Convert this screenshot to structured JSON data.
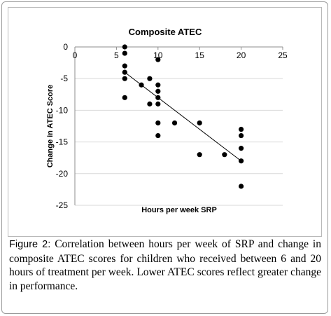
{
  "chart_data": {
    "type": "scatter",
    "title": "Composite ATEC",
    "xlabel": "Hours per week SRP",
    "ylabel": "Change in ATEC Score",
    "xlim": [
      0,
      25
    ],
    "ylim": [
      -25,
      0
    ],
    "x_ticks": [
      "0",
      "5",
      "10",
      "15",
      "20",
      "25"
    ],
    "y_ticks": [
      "0",
      "-5",
      "-10",
      "-15",
      "-20",
      "-25"
    ],
    "grid": "horizontal",
    "legend": "none",
    "trendline": {
      "type": "linear",
      "x": [
        6,
        20
      ],
      "y": [
        -4,
        -18
      ]
    },
    "points": [
      {
        "x": 6,
        "y": 0
      },
      {
        "x": 6,
        "y": -1
      },
      {
        "x": 6,
        "y": -3
      },
      {
        "x": 6,
        "y": -4
      },
      {
        "x": 6,
        "y": -5
      },
      {
        "x": 6,
        "y": -8
      },
      {
        "x": 8,
        "y": -6
      },
      {
        "x": 9,
        "y": -5
      },
      {
        "x": 9,
        "y": -9
      },
      {
        "x": 10,
        "y": -2
      },
      {
        "x": 10,
        "y": -6
      },
      {
        "x": 10,
        "y": -7
      },
      {
        "x": 10,
        "y": -8
      },
      {
        "x": 10,
        "y": -9
      },
      {
        "x": 10,
        "y": -12
      },
      {
        "x": 10,
        "y": -14
      },
      {
        "x": 12,
        "y": -12
      },
      {
        "x": 15,
        "y": -12
      },
      {
        "x": 15,
        "y": -17
      },
      {
        "x": 18,
        "y": -17
      },
      {
        "x": 20,
        "y": -13
      },
      {
        "x": 20,
        "y": -14
      },
      {
        "x": 20,
        "y": -16
      },
      {
        "x": 20,
        "y": -18
      },
      {
        "x": 20,
        "y": -22
      }
    ],
    "colors": {
      "points": "#000000",
      "trendline": "#000000",
      "grid": "#d9d9d9"
    }
  },
  "caption": {
    "figure_label": "Figure 2:",
    "text": " Correlation between hours per week of SRP and change in composite ATEC scores for children who received between 6 and 20 hours of treatment per week. Lower ATEC scores reflect greater change in performance."
  }
}
